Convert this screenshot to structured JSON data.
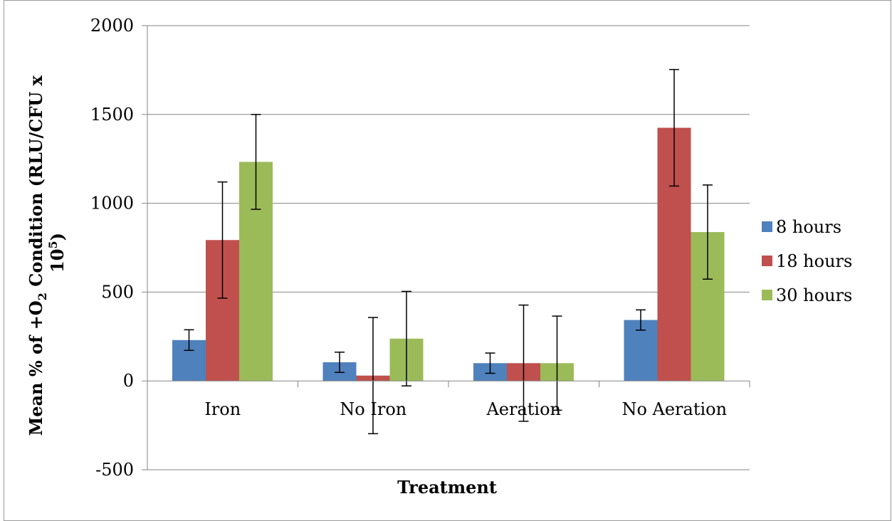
{
  "chart_data": {
    "type": "bar",
    "title": "",
    "xlabel": "Treatment",
    "ylabel": {
      "part1": "Mean % of  +O",
      "sub": "2",
      "part2": " Condition (RLU/CFU x",
      "line2": "10",
      "sup": "5",
      "line2_end": ")"
    },
    "ylim": [
      -500,
      2000
    ],
    "yticks": [
      -500,
      0,
      500,
      1000,
      1500,
      2000
    ],
    "ytick_labels": [
      "-500",
      "0",
      "500",
      "1000",
      "1500",
      "2000"
    ],
    "grid": true,
    "legend_position": "right",
    "categories": [
      "Iron",
      "No Iron",
      "Aeration",
      "No Aeration"
    ],
    "series": [
      {
        "name": "8 hours",
        "color": "#4F81BD",
        "values": [
          230,
          105,
          100,
          343
        ],
        "errors": [
          58,
          57,
          57,
          57
        ]
      },
      {
        "name": "18 hours",
        "color": "#C0504D",
        "values": [
          793,
          30,
          100,
          1425
        ],
        "errors": [
          327,
          327,
          327,
          328
        ]
      },
      {
        "name": "30 hours",
        "color": "#9BBB59",
        "values": [
          1233,
          238,
          100,
          838
        ],
        "errors": [
          267,
          266,
          265,
          265
        ]
      }
    ]
  }
}
